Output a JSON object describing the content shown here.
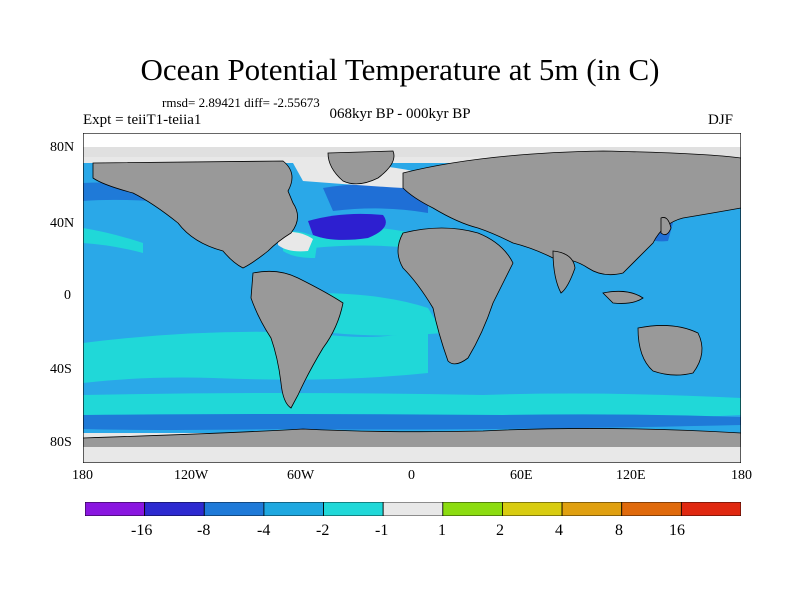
{
  "title": "Ocean Potential Temperature at 5m (in C)",
  "stats": "rmsd= 2.89421 diff= -2.55673",
  "experiment": "Expt = teiiT1-teiia1",
  "period": "068kyr BP - 000kyr BP",
  "season": "DJF",
  "lat_labels": [
    "80N",
    "40N",
    "0",
    "40S",
    "80S"
  ],
  "lon_labels": [
    "180",
    "120W",
    "60W",
    "0",
    "60E",
    "120E",
    "180"
  ],
  "colors": {
    "land": "#999999",
    "ocean_main": "#2aa8e8",
    "ocean_light": "#20d8d8",
    "ocean_dark": "#1f6fd6",
    "strong_cooling": "#2d1fd0",
    "neutral": "#e8e8e8"
  },
  "colorbar": {
    "colors": [
      "#8a16e0",
      "#2d2ad0",
      "#1f7ad8",
      "#1fa8e0",
      "#20d8d8",
      "#e8e8e8",
      "#8cdc10",
      "#d8cc10",
      "#e0a010",
      "#e06a0c",
      "#e02810"
    ],
    "labels": [
      "-16",
      "-8",
      "-4",
      "-2",
      "-1",
      "1",
      "2",
      "4",
      "8",
      "16"
    ]
  }
}
